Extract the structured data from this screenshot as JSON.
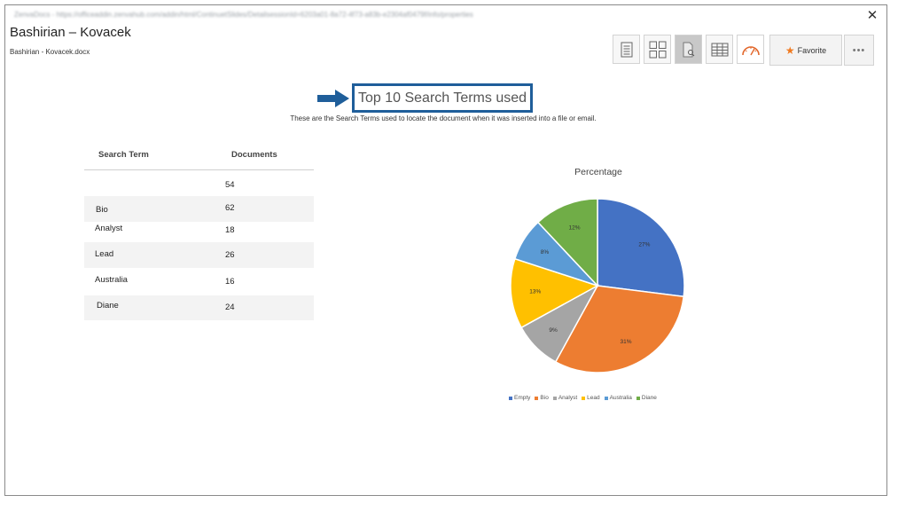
{
  "window": {
    "url": "ZenvaDocs - https://officeaddin.zenvahub.com/addin/html/ContinuetSlides/DetailsessionId=6203a01-8a72-4f73-a83b-e2304af0479f/info/properties"
  },
  "document": {
    "title": "Bashirian – Kovacek",
    "filename": "Bashirian - Kovacek.docx"
  },
  "toolbar": {
    "buttons": [
      {
        "icon": "document-view-icon"
      },
      {
        "icon": "grid-view-icon"
      },
      {
        "icon": "document-search-icon"
      },
      {
        "icon": "table-view-icon"
      },
      {
        "icon": "dashboard-gauge-icon"
      }
    ],
    "favorite_label": "Favorite",
    "more_label": "•••"
  },
  "section": {
    "title": "Top 10 Search Terms used",
    "description": "These are the Search Terms used to locate the document when it was inserted into a file or email."
  },
  "table": {
    "headers": [
      "Search Term",
      "Documents"
    ],
    "rows": [
      {
        "term": "",
        "documents": "54"
      },
      {
        "term": "Bio",
        "documents": "62"
      },
      {
        "term": "Analyst",
        "documents": "18"
      },
      {
        "term": "Lead",
        "documents": "26"
      },
      {
        "term": "Australia",
        "documents": "16"
      },
      {
        "term": "Diane",
        "documents": "24"
      }
    ]
  },
  "chart_data": {
    "type": "pie",
    "title": "Percentage",
    "categories": [
      "Empty",
      "Bio",
      "Analyst",
      "Lead",
      "Australia",
      "Diane"
    ],
    "values": [
      27,
      31,
      9,
      13,
      8,
      12
    ],
    "labels": [
      "27%",
      "31%",
      "9%",
      "13%",
      "8%",
      "12%"
    ],
    "colors": [
      "#4472c4",
      "#ed7d31",
      "#a5a5a5",
      "#ffc000",
      "#5b9bd5",
      "#70ad47"
    ],
    "legend": "bottom"
  }
}
